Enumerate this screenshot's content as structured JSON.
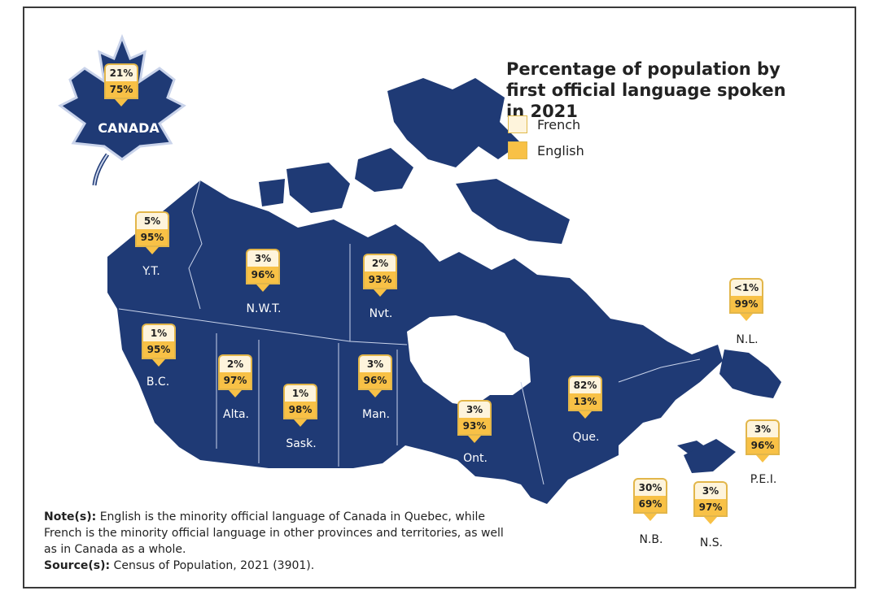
{
  "title": "Percentage of population by first official language spoken in 2021",
  "legend": [
    {
      "label": "French",
      "color": "#fef4dc"
    },
    {
      "label": "English",
      "color": "#f8c146"
    }
  ],
  "canada": {
    "label": "CANADA",
    "french": "21%",
    "english": "75%"
  },
  "regions": [
    {
      "label": "Y.T.",
      "french": "5%",
      "english": "95%"
    },
    {
      "label": "N.W.T.",
      "french": "3%",
      "english": "96%"
    },
    {
      "label": "Nvt.",
      "french": "2%",
      "english": "93%"
    },
    {
      "label": "B.C.",
      "french": "1%",
      "english": "95%"
    },
    {
      "label": "Alta.",
      "french": "2%",
      "english": "97%"
    },
    {
      "label": "Sask.",
      "french": "1%",
      "english": "98%"
    },
    {
      "label": "Man.",
      "french": "3%",
      "english": "96%"
    },
    {
      "label": "Ont.",
      "french": "3%",
      "english": "93%"
    },
    {
      "label": "Que.",
      "french": "82%",
      "english": "13%"
    },
    {
      "label": "N.L.",
      "french": "<1%",
      "english": "99%"
    },
    {
      "label": "P.E.I.",
      "french": "3%",
      "english": "96%"
    },
    {
      "label": "N.B.",
      "french": "30%",
      "english": "69%"
    },
    {
      "label": "N.S.",
      "french": "3%",
      "english": "97%"
    }
  ],
  "note_label": "Note(s):",
  "note_text": " English is the minority official language of Canada in Quebec, while French is the minority official language in other provinces and territories, as well as in Canada as a whole.",
  "source_label": "Source(s):",
  "source_text": " Census of Population, 2021 (3901).",
  "colors": {
    "land": "#1f3a75",
    "water": "#ffffff",
    "french": "#fef4dc",
    "english": "#f8c146"
  }
}
